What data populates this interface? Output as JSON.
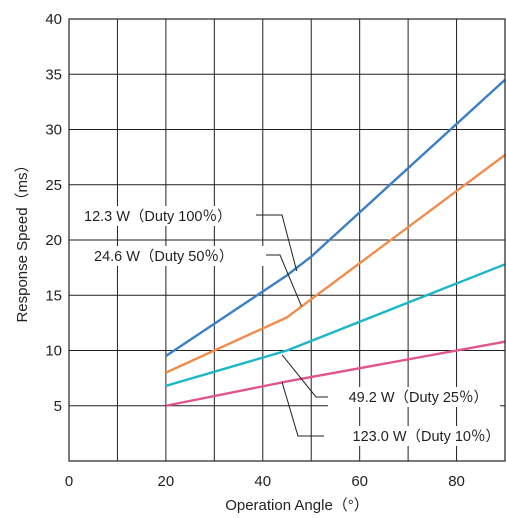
{
  "chart_data": {
    "type": "line",
    "xlabel": "Operation Angle（°）",
    "ylabel": "Response Speed（ms）",
    "xlim": [
      0,
      90
    ],
    "ylim": [
      0,
      40
    ],
    "x_ticks": [
      0,
      20,
      40,
      60,
      80
    ],
    "y_ticks": [
      5,
      10,
      15,
      20,
      25,
      30,
      35,
      40
    ],
    "x_tick_labels": [
      "0",
      "20",
      "40",
      "60",
      "80"
    ],
    "y_tick_labels": [
      "5",
      "10",
      "15",
      "20",
      "25",
      "30",
      "35",
      "40"
    ],
    "grid": true,
    "series": [
      {
        "name": "12.3 W（Duty 100％）",
        "color": "#3a7fc4",
        "x": [
          20,
          45,
          50,
          90
        ],
        "y": [
          9.5,
          16.8,
          18.5,
          34.5
        ]
      },
      {
        "name": "24.6 W（Duty 50％）",
        "color": "#f08c4b",
        "x": [
          20,
          45,
          90
        ],
        "y": [
          8.0,
          13.0,
          27.7
        ]
      },
      {
        "name": "49.2 W（Duty 25％）",
        "color": "#1bb6c8",
        "x": [
          20,
          45,
          90
        ],
        "y": [
          6.8,
          10.0,
          17.8
        ]
      },
      {
        "name": "123.0 W（Duty 10％）",
        "color": "#e0558f",
        "x": [
          20,
          45,
          90
        ],
        "y": [
          5.0,
          7.2,
          10.8
        ]
      }
    ],
    "annotations": [
      {
        "text": "12.3 W（Duty 100％）",
        "series": 0,
        "x": 47,
        "y": 17.2
      },
      {
        "text": "24.6 W（Duty 50％）",
        "series": 1,
        "x": 48,
        "y": 14.0
      },
      {
        "text": "49.2 W（Duty 25％）",
        "series": 2,
        "x": 44,
        "y": 9.6
      },
      {
        "text": "123.0 W（Duty 10％）",
        "series": 3,
        "x": 44,
        "y": 7.1
      }
    ]
  }
}
